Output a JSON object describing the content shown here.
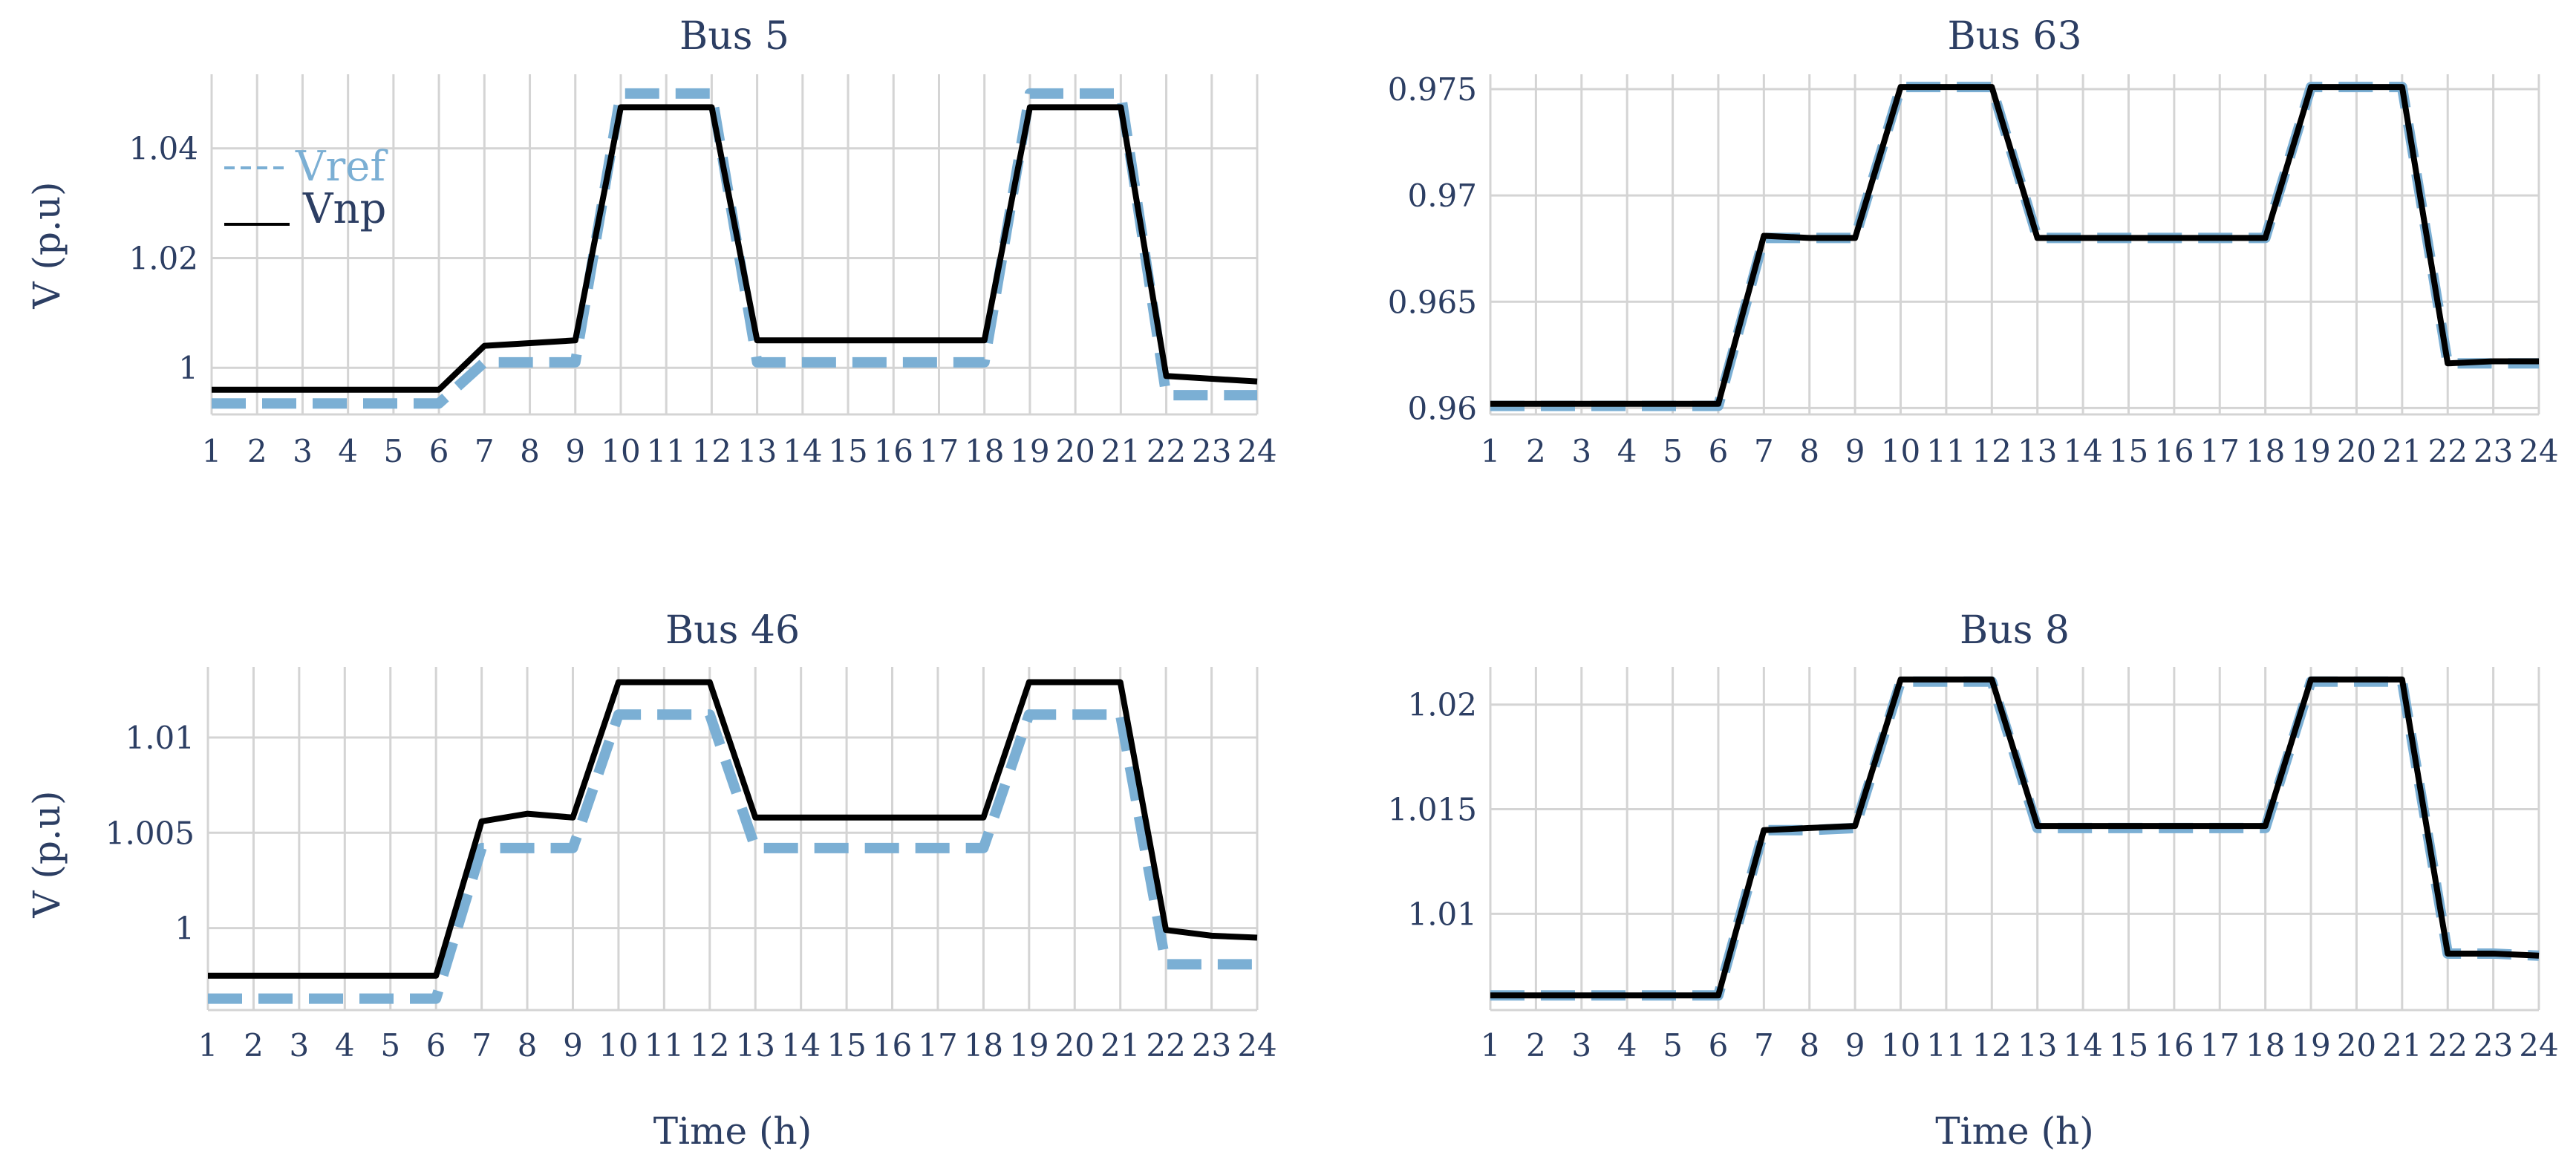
{
  "colors": {
    "vref": "#7bafd4",
    "vnp": "#000000",
    "text": "#2c3e63",
    "grid": "#d4d4d4"
  },
  "chart_data": [
    {
      "type": "line",
      "title": "Bus 5",
      "xlabel": "",
      "ylabel": "V (p.u)",
      "x": [
        1,
        2,
        3,
        4,
        5,
        6,
        7,
        8,
        9,
        10,
        11,
        12,
        13,
        14,
        15,
        16,
        17,
        18,
        19,
        20,
        21,
        22,
        23,
        24
      ],
      "xticks": [
        "1",
        "2",
        "3",
        "4",
        "5",
        "6",
        "7",
        "8",
        "9",
        "10",
        "11",
        "12",
        "13",
        "14",
        "15",
        "16",
        "17",
        "18",
        "19",
        "20",
        "21",
        "22",
        "23",
        "24"
      ],
      "ylim": [
        0.9915,
        1.0535
      ],
      "yticks": [
        1.04,
        1.02,
        1
      ],
      "ytick_labels": [
        "1.04",
        "1.02",
        "1"
      ],
      "grid": true,
      "legend": {
        "position": "top-left",
        "entries": [
          "Vref",
          "Vnp"
        ]
      },
      "series": [
        {
          "name": "Vref",
          "style": "dashed",
          "color": "#7bafd4",
          "values": [
            0.9935,
            0.9935,
            0.9935,
            0.9935,
            0.9935,
            0.9935,
            1.001,
            1.001,
            1.001,
            1.05,
            1.05,
            1.05,
            1.001,
            1.001,
            1.001,
            1.001,
            1.001,
            1.001,
            1.05,
            1.05,
            1.05,
            0.995,
            0.995,
            0.995
          ]
        },
        {
          "name": "Vnp",
          "style": "solid",
          "color": "#000000",
          "values": [
            0.996,
            0.996,
            0.996,
            0.996,
            0.996,
            0.996,
            1.004,
            1.0045,
            1.005,
            1.0475,
            1.0475,
            1.0475,
            1.005,
            1.005,
            1.005,
            1.005,
            1.005,
            1.005,
            1.0475,
            1.0475,
            1.0475,
            0.9985,
            0.998,
            0.9975
          ]
        }
      ]
    },
    {
      "type": "line",
      "title": "Bus 63",
      "xlabel": "",
      "ylabel": "",
      "x": [
        1,
        2,
        3,
        4,
        5,
        6,
        7,
        8,
        9,
        10,
        11,
        12,
        13,
        14,
        15,
        16,
        17,
        18,
        19,
        20,
        21,
        22,
        23,
        24
      ],
      "xticks": [
        "1",
        "2",
        "3",
        "4",
        "5",
        "6",
        "7",
        "8",
        "9",
        "10",
        "11",
        "12",
        "13",
        "14",
        "15",
        "16",
        "17",
        "18",
        "19",
        "20",
        "21",
        "22",
        "23",
        "24"
      ],
      "ylim": [
        0.9597,
        0.9757
      ],
      "yticks": [
        0.975,
        0.97,
        0.965,
        0.96
      ],
      "ytick_labels": [
        "0.975",
        "0.97",
        "0.965",
        "0.96"
      ],
      "grid": true,
      "series": [
        {
          "name": "Vref",
          "style": "dashed",
          "color": "#7bafd4",
          "values": [
            0.9601,
            0.9601,
            0.9601,
            0.9601,
            0.9601,
            0.9601,
            0.968,
            0.968,
            0.968,
            0.9751,
            0.9751,
            0.9751,
            0.968,
            0.968,
            0.968,
            0.968,
            0.968,
            0.968,
            0.9751,
            0.9751,
            0.9751,
            0.9621,
            0.9621,
            0.9621
          ]
        },
        {
          "name": "Vnp",
          "style": "solid",
          "color": "#000000",
          "values": [
            0.9602,
            0.9602,
            0.9602,
            0.9602,
            0.9602,
            0.9602,
            0.9681,
            0.968,
            0.968,
            0.9751,
            0.9751,
            0.9751,
            0.968,
            0.968,
            0.968,
            0.968,
            0.968,
            0.968,
            0.9751,
            0.9751,
            0.9751,
            0.9621,
            0.9622,
            0.9622
          ]
        }
      ]
    },
    {
      "type": "line",
      "title": "Bus 46",
      "xlabel": "Time (h)",
      "ylabel": "V (p.u)",
      "x": [
        1,
        2,
        3,
        4,
        5,
        6,
        7,
        8,
        9,
        10,
        11,
        12,
        13,
        14,
        15,
        16,
        17,
        18,
        19,
        20,
        21,
        22,
        23,
        24
      ],
      "xticks": [
        "1",
        "2",
        "3",
        "4",
        "5",
        "6",
        "7",
        "8",
        "9",
        "10",
        "11",
        "12",
        "13",
        "14",
        "15",
        "16",
        "17",
        "18",
        "19",
        "20",
        "21",
        "22",
        "23",
        "24"
      ],
      "ylim": [
        0.9957,
        1.0137
      ],
      "yticks": [
        1.01,
        1.005,
        1
      ],
      "ytick_labels": [
        "1.01",
        "1.005",
        "1"
      ],
      "grid": true,
      "series": [
        {
          "name": "Vref",
          "style": "dashed",
          "color": "#7bafd4",
          "values": [
            0.9963,
            0.9963,
            0.9963,
            0.9963,
            0.9963,
            0.9963,
            1.0042,
            1.0042,
            1.0042,
            1.0112,
            1.0112,
            1.0112,
            1.0042,
            1.0042,
            1.0042,
            1.0042,
            1.0042,
            1.0042,
            1.0112,
            1.0112,
            1.0112,
            0.9981,
            0.9981,
            0.9981
          ]
        },
        {
          "name": "Vnp",
          "style": "solid",
          "color": "#000000",
          "values": [
            0.9975,
            0.9975,
            0.9975,
            0.9975,
            0.9975,
            0.9975,
            1.0056,
            1.006,
            1.0058,
            1.0129,
            1.0129,
            1.0129,
            1.0058,
            1.0058,
            1.0058,
            1.0058,
            1.0058,
            1.0058,
            1.0129,
            1.0129,
            1.0129,
            0.9999,
            0.9996,
            0.9995
          ]
        }
      ]
    },
    {
      "type": "line",
      "title": "Bus 8",
      "xlabel": "Time (h)",
      "ylabel": "",
      "x": [
        1,
        2,
        3,
        4,
        5,
        6,
        7,
        8,
        9,
        10,
        11,
        12,
        13,
        14,
        15,
        16,
        17,
        18,
        19,
        20,
        21,
        22,
        23,
        24
      ],
      "xticks": [
        "1",
        "2",
        "3",
        "4",
        "5",
        "6",
        "7",
        "8",
        "9",
        "10",
        "11",
        "12",
        "13",
        "14",
        "15",
        "16",
        "17",
        "18",
        "19",
        "20",
        "21",
        "22",
        "23",
        "24"
      ],
      "ylim": [
        1.0054,
        1.0218
      ],
      "yticks": [
        1.02,
        1.015,
        1.01
      ],
      "ytick_labels": [
        "1.02",
        "1.015",
        "1.01"
      ],
      "grid": true,
      "series": [
        {
          "name": "Vref",
          "style": "dashed",
          "color": "#7bafd4",
          "values": [
            1.0061,
            1.0061,
            1.0061,
            1.0061,
            1.0061,
            1.0061,
            1.014,
            1.014,
            1.0141,
            1.0211,
            1.0211,
            1.0211,
            1.0141,
            1.0141,
            1.0141,
            1.0141,
            1.0141,
            1.0141,
            1.0211,
            1.0211,
            1.0211,
            1.0081,
            1.0081,
            1.008
          ]
        },
        {
          "name": "Vnp",
          "style": "solid",
          "color": "#000000",
          "values": [
            1.0061,
            1.0061,
            1.0061,
            1.0061,
            1.0061,
            1.0061,
            1.014,
            1.0141,
            1.0142,
            1.0212,
            1.0212,
            1.0212,
            1.0142,
            1.0142,
            1.0142,
            1.0142,
            1.0142,
            1.0142,
            1.0212,
            1.0212,
            1.0212,
            1.0081,
            1.0081,
            1.008
          ]
        }
      ]
    }
  ]
}
